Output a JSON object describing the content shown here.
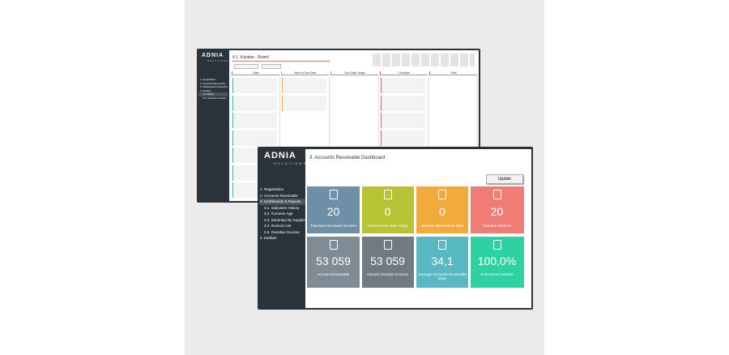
{
  "back_window": {
    "logo": "ADNIA",
    "logo_sub": "SOLUTIONS",
    "title": "4.1. Kanban - Board",
    "menu": [
      "1. Registration",
      "2. Accounts Receivable",
      "3. Dashboards & Reports",
      "4. Kanban",
      "4.1. Board",
      "4.2. Overdue Invoices"
    ],
    "columns": [
      "Open",
      "Next to Due Date",
      "Due Date Today",
      "Overdue",
      "Paid"
    ]
  },
  "front_window": {
    "logo": "ADNIA",
    "logo_sub": "SOLUTIONS",
    "title": "3. Accounts Receivable Dashboard",
    "update_button": "Update",
    "menu": [
      "1. Registration",
      "2. Accounts Receivable",
      "3. Dashboards & Reports",
      "3.1. Indicators History",
      "3.2. Turnover Age",
      "3.3. Summary By Suppliers",
      "3.4. Invoices List",
      "3.5. Overdue Invoices",
      "4. Kanban"
    ],
    "tiles": [
      {
        "value": "20",
        "label": "Total Non Received Invoices",
        "color": "#6e8fa6"
      },
      {
        "value": "0",
        "label": "Invoices Due Date Today",
        "color": "#b6c335"
      },
      {
        "value": "0",
        "label": "Invoices Next to Due Date",
        "color": "#f3aa3c"
      },
      {
        "value": "20",
        "label": "Overdue Invoices",
        "color": "#ef7d75"
      },
      {
        "value": "53 059",
        "label": "Account Receivable",
        "color": "#7f8b95"
      },
      {
        "value": "53 059",
        "label": "Amount Overdue Invoices",
        "color": "#6f7a81"
      },
      {
        "value": "34,1",
        "label": "Average Accounts Receivable Days",
        "color": "#58b9c2"
      },
      {
        "value": "100,0%",
        "label": "% Invoices Overdue",
        "color": "#2fd0a2"
      }
    ]
  }
}
